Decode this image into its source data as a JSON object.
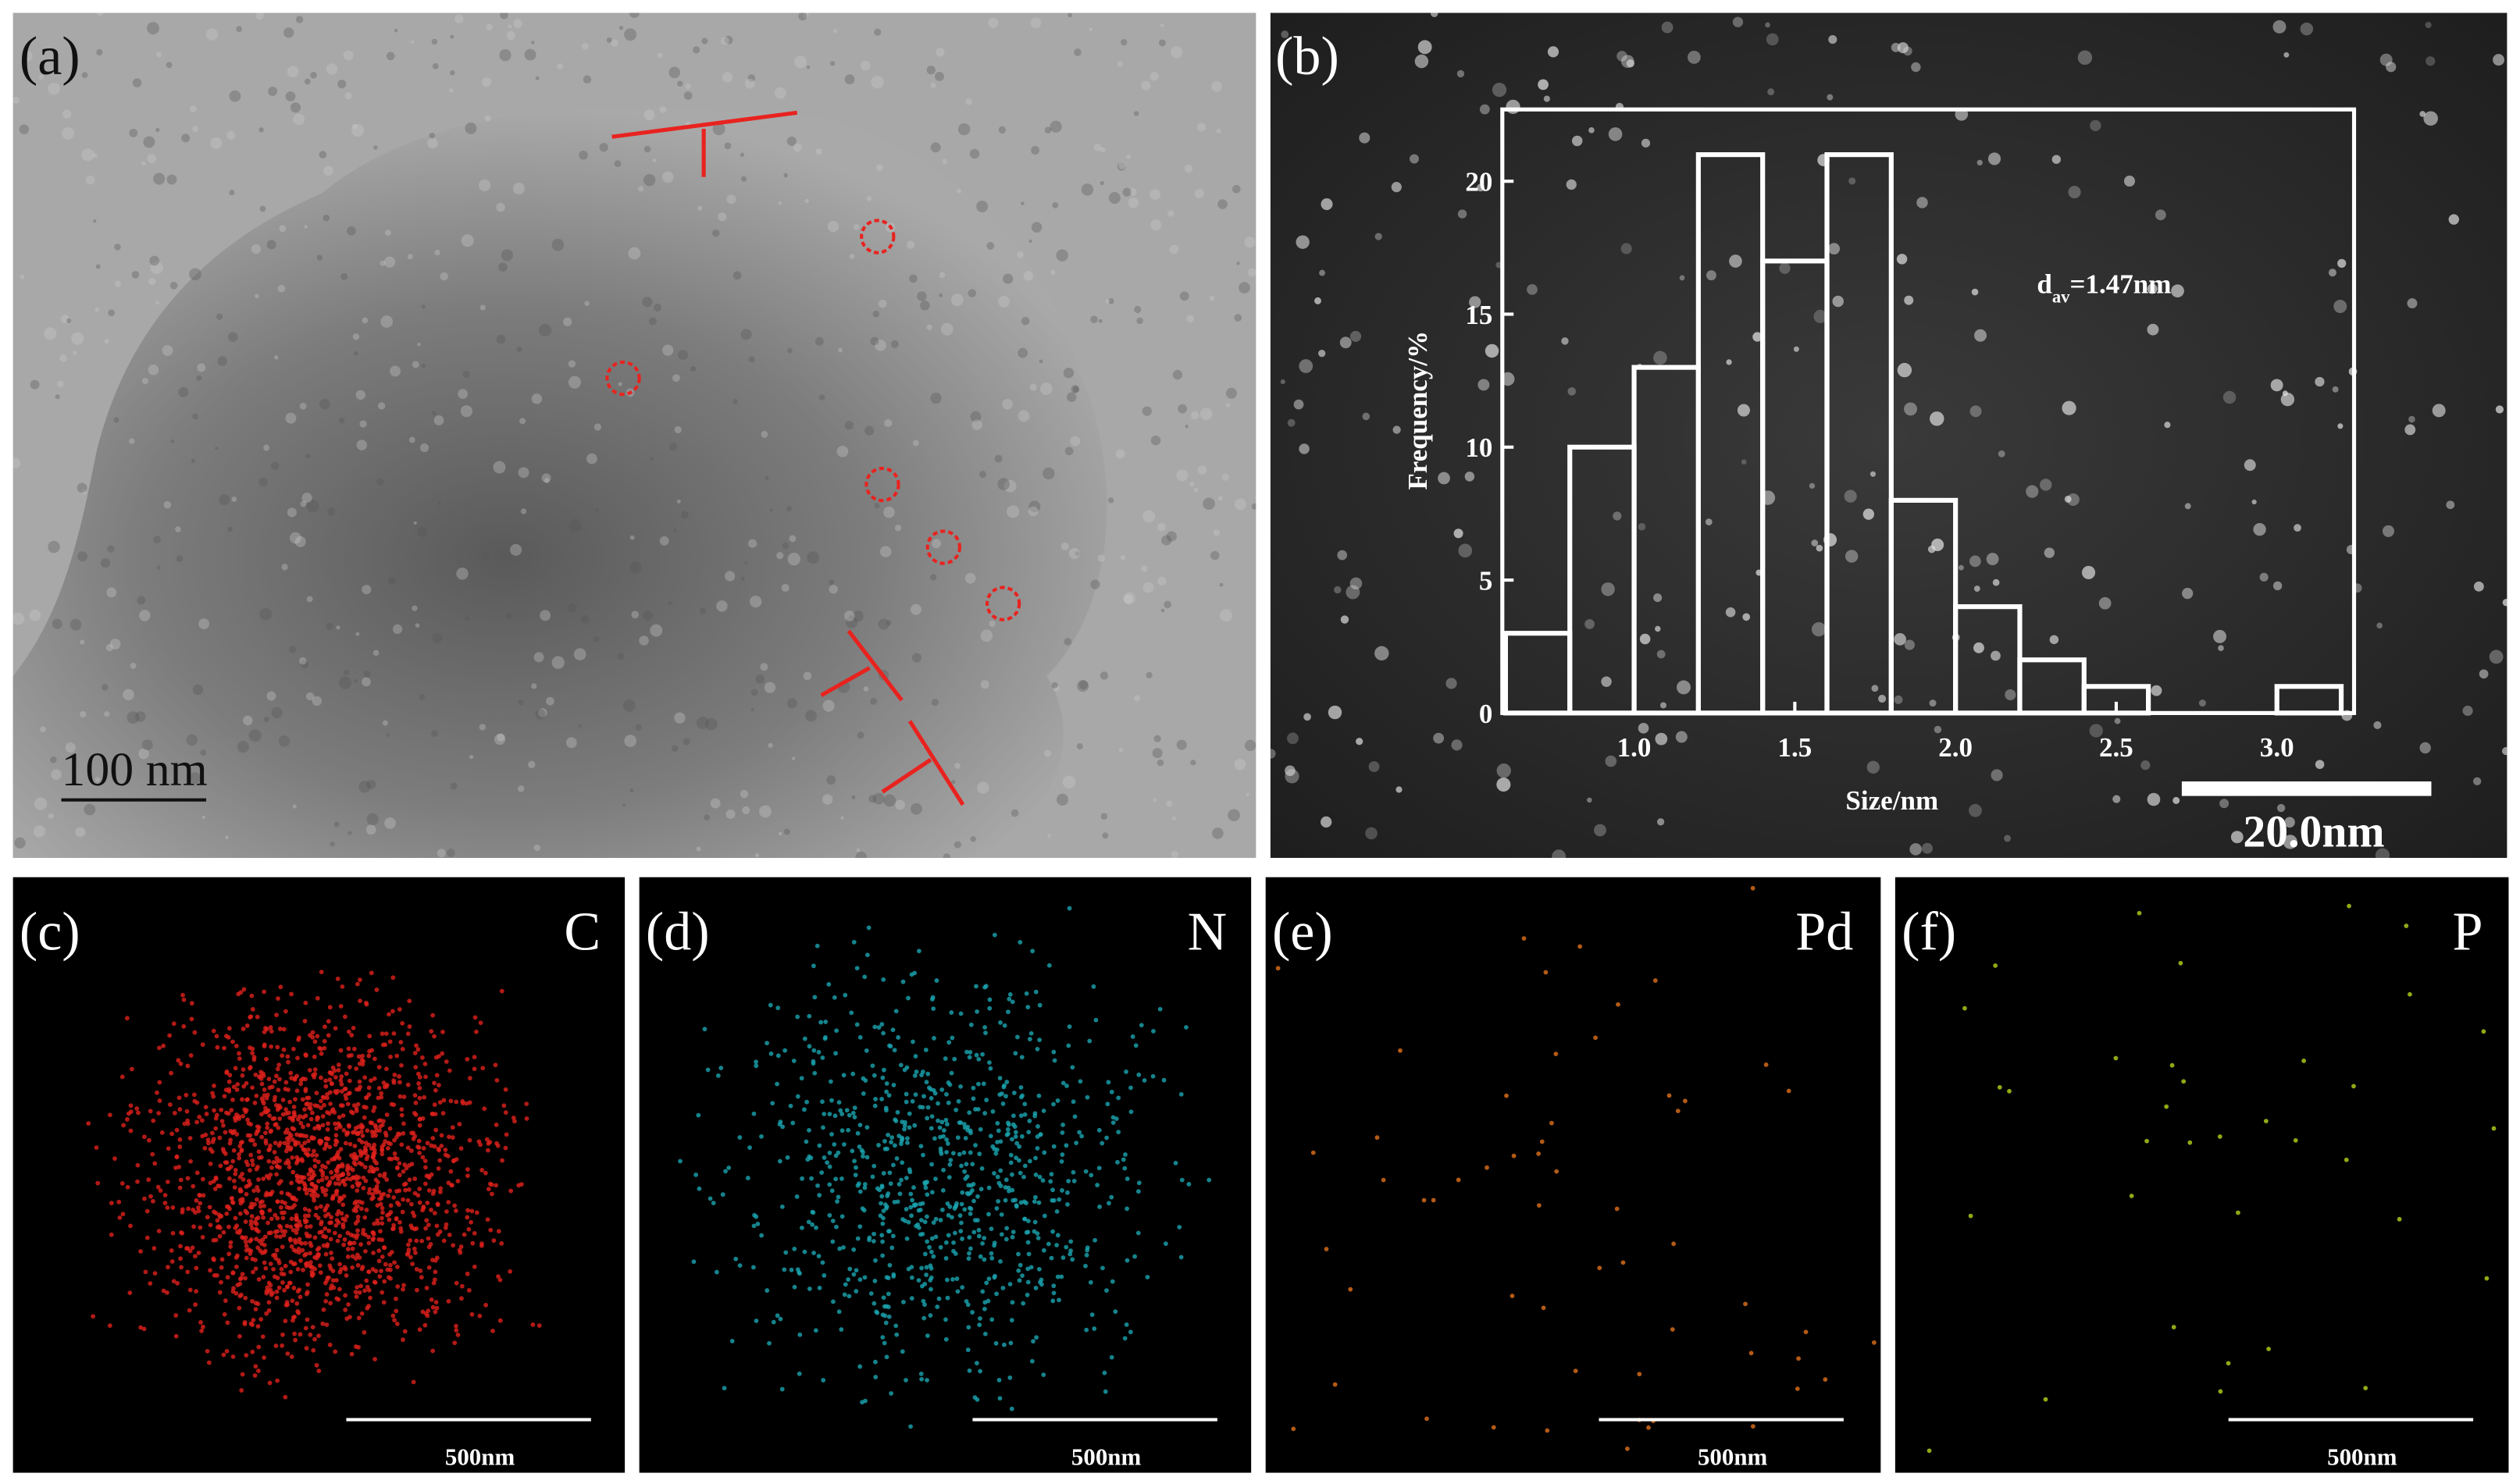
{
  "panels": [
    {
      "label": "(a)",
      "scale_bar": "100 nm"
    },
    {
      "label": "(b)",
      "scale_bar": "20.0nm"
    },
    {
      "label": "(c)",
      "element": "C",
      "scale_bar": "500nm"
    },
    {
      "label": "(d)",
      "element": "N",
      "scale_bar": "500nm"
    },
    {
      "label": "(e)",
      "element": "Pd",
      "scale_bar": "500nm"
    },
    {
      "label": "(f)",
      "element": "P",
      "scale_bar": "500nm"
    }
  ],
  "chart_data": {
    "type": "histogram",
    "x_label": "Size/nm",
    "y_label": "Frequency/%",
    "annotation": {
      "text": "d",
      "subscript": "av",
      "suffix": "=1.47nm"
    },
    "bins": [
      0.6,
      0.8,
      1.0,
      1.2,
      1.4,
      1.6,
      1.8,
      2.0,
      2.2,
      2.4,
      2.6,
      2.8,
      3.0,
      3.2
    ],
    "values": [
      3,
      10,
      13,
      21,
      17,
      21,
      8,
      4,
      2,
      1,
      0,
      0,
      1
    ],
    "color": "#ffffff",
    "xlim": [
      0.59,
      3.24
    ],
    "ylim": [
      0,
      22.7
    ],
    "xticks": [
      {
        "value": 1,
        "label": "1.0"
      },
      {
        "value": 1.5,
        "label": "1.5"
      },
      {
        "value": 2,
        "label": "2.0"
      },
      {
        "value": 2.5,
        "label": "2.5"
      },
      {
        "value": 3,
        "label": "3.0"
      }
    ],
    "yticks": [
      0,
      5,
      10,
      15,
      20
    ]
  }
}
